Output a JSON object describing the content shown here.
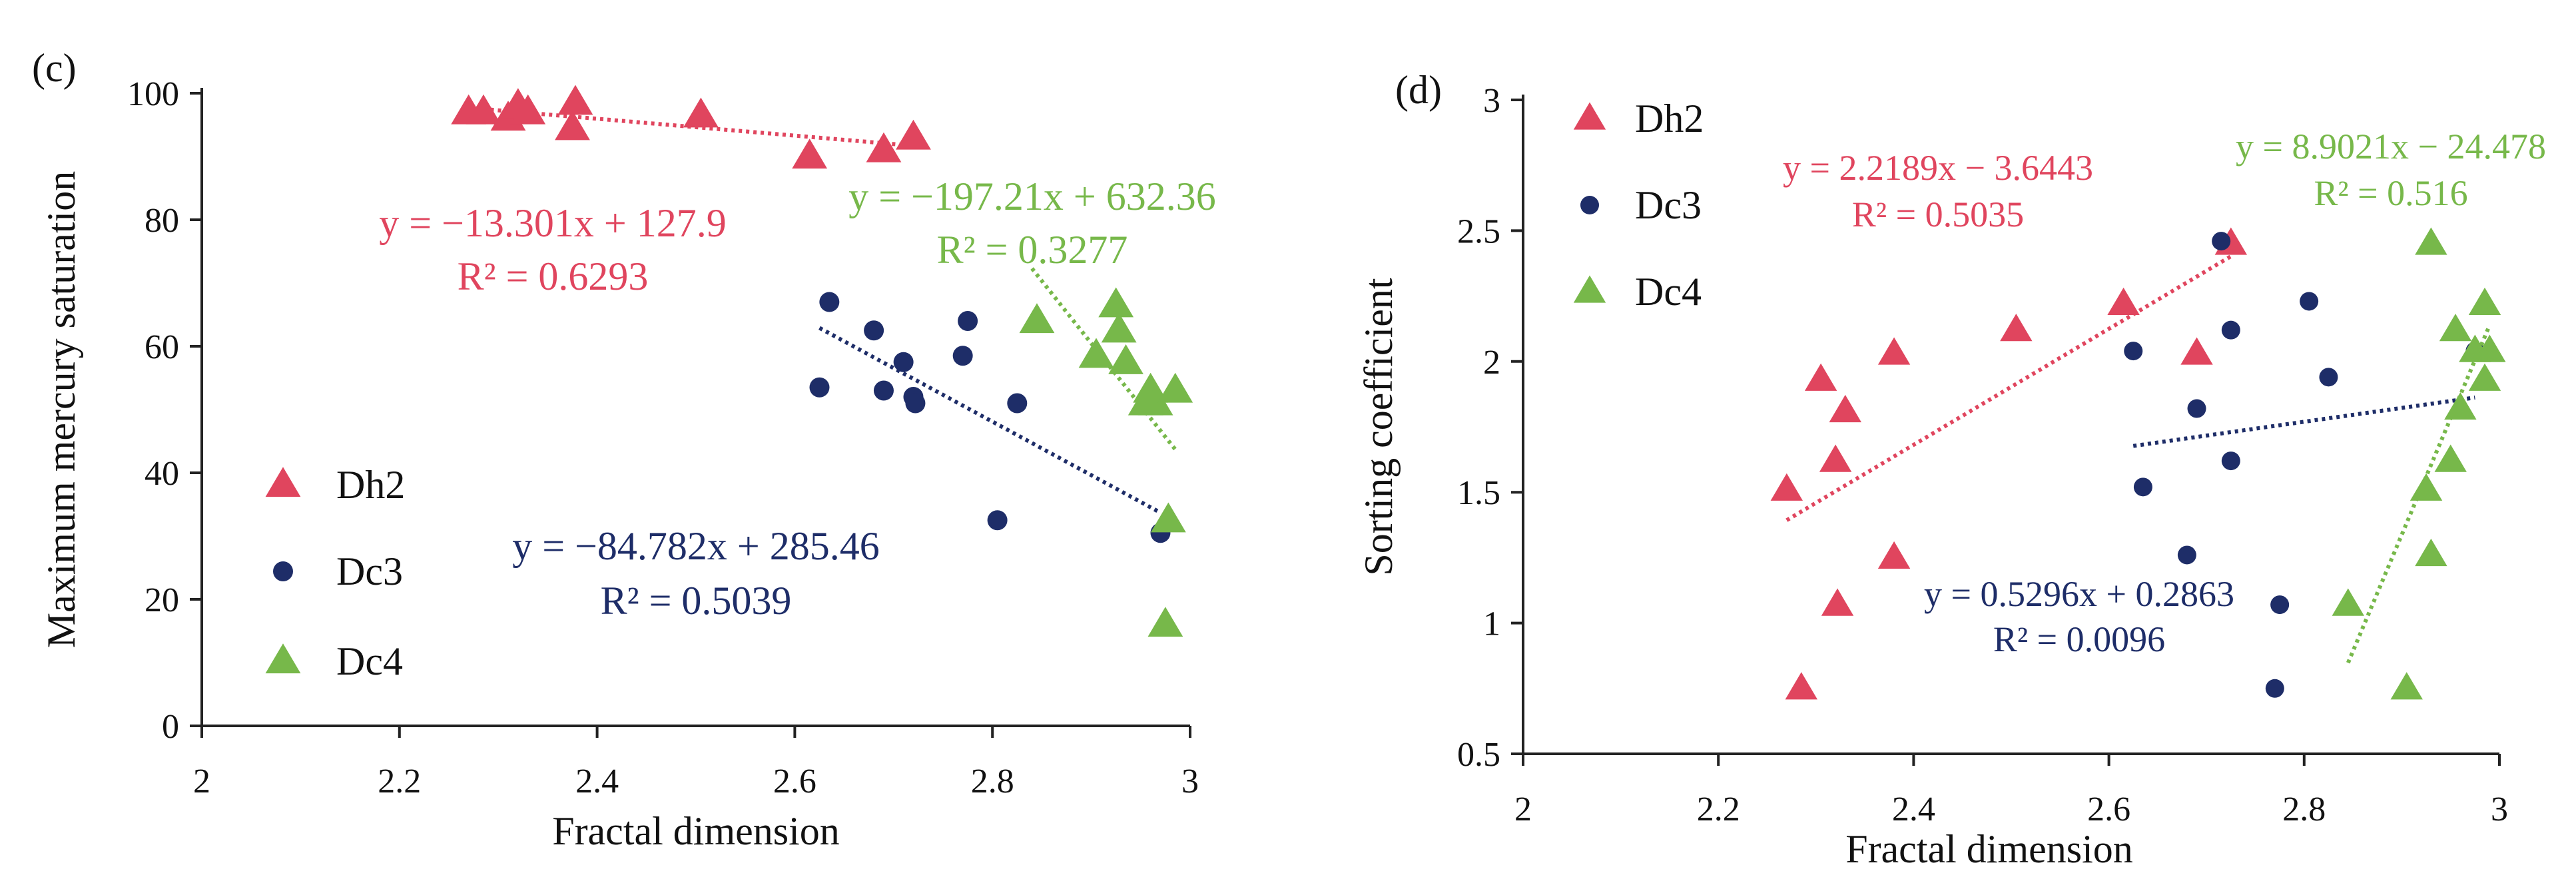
{
  "colors": {
    "dh2": "#E0455E",
    "dc3": "#1E2D68",
    "dc4": "#77B84A",
    "axis": "#222222"
  },
  "chart_data": [
    {
      "type": "scatter",
      "panel_label": "(c)",
      "xlabel": "Fractal dimension",
      "ylabel": "Maximum mercury saturation",
      "xlim": [
        2,
        3
      ],
      "ylim": [
        0,
        100
      ],
      "xticks": [
        "2",
        "2.2",
        "2.4",
        "2.6",
        "2.8",
        "3"
      ],
      "yticks": [
        "0",
        "20",
        "40",
        "60",
        "80",
        "100"
      ],
      "legend": [
        "Dh2",
        "Dc3",
        "Dc4"
      ],
      "legend_position": "bottom-left",
      "series": [
        {
          "name": "Dh2",
          "marker": "triangle",
          "color": "#E0455E",
          "x": [
            2.27,
            2.285,
            2.31,
            2.32,
            2.33,
            2.375,
            2.378,
            2.505,
            2.615,
            2.69,
            2.72
          ],
          "y": [
            97,
            97,
            96,
            98,
            97,
            94.5,
            98.5,
            96.5,
            90,
            91,
            93
          ],
          "equation": "y = −13.301x + 127.9",
          "r2": "R² = 0.6293",
          "trend": [
            [
              2.27,
              97.7
            ],
            [
              2.72,
              91.7
            ]
          ]
        },
        {
          "name": "Dc3",
          "marker": "circle",
          "color": "#1E2D68",
          "x": [
            2.625,
            2.635,
            2.68,
            2.69,
            2.71,
            2.72,
            2.722,
            2.77,
            2.775,
            2.805,
            2.825,
            2.97
          ],
          "y": [
            53.5,
            67,
            62.5,
            53,
            57.5,
            52,
            51,
            58.5,
            64,
            32.5,
            51,
            30.5
          ],
          "equation": "y = −84.782x + 285.46",
          "r2": "R² = 0.5039",
          "trend": [
            [
              2.625,
              62.9
            ],
            [
              2.97,
              33.7
            ]
          ]
        },
        {
          "name": "Dc4",
          "marker": "triangle",
          "color": "#77B84A",
          "x": [
            2.845,
            2.905,
            2.925,
            2.928,
            2.935,
            2.955,
            2.96,
            2.965,
            2.975,
            2.978,
            2.985
          ],
          "y": [
            64,
            58.5,
            66.5,
            62.5,
            57.5,
            51,
            53,
            51,
            16,
            32.5,
            53
          ],
          "equation": "y = −197.21x + 632.36",
          "r2": "R² = 0.3277",
          "trend": [
            [
              2.84,
              72.3
            ],
            [
              2.985,
              43.7
            ]
          ]
        }
      ]
    },
    {
      "type": "scatter",
      "panel_label": "(d)",
      "xlabel": "Fractal dimension",
      "ylabel": "Sorting coefficient",
      "xlim": [
        2,
        3
      ],
      "ylim": [
        0.5,
        3
      ],
      "xticks": [
        "2",
        "2.2",
        "2.4",
        "2.6",
        "2.8",
        "3"
      ],
      "yticks": [
        "0.5",
        "1",
        "1.5",
        "2",
        "2.5",
        "3"
      ],
      "legend": [
        "Dh2",
        "Dc3",
        "Dc4"
      ],
      "legend_position": "top-left",
      "series": [
        {
          "name": "Dh2",
          "marker": "triangle",
          "color": "#E0455E",
          "x": [
            2.27,
            2.285,
            2.305,
            2.32,
            2.322,
            2.33,
            2.38,
            2.38,
            2.505,
            2.615,
            2.69,
            2.725
          ],
          "y": [
            1.51,
            0.75,
            1.93,
            1.62,
            1.07,
            1.81,
            1.25,
            2.03,
            2.12,
            2.22,
            2.03,
            2.45
          ],
          "equation": "y = 2.2189x − 3.6443",
          "r2": "R² = 0.5035",
          "trend": [
            [
              2.27,
              1.393
            ],
            [
              2.725,
              2.402
            ]
          ]
        },
        {
          "name": "Dc3",
          "marker": "circle",
          "color": "#1E2D68",
          "x": [
            2.625,
            2.635,
            2.68,
            2.69,
            2.715,
            2.725,
            2.725,
            2.77,
            2.775,
            2.805,
            2.825,
            2.975
          ],
          "y": [
            2.04,
            1.52,
            1.26,
            1.82,
            2.46,
            2.12,
            1.62,
            0.75,
            1.07,
            2.23,
            1.94,
            2.04
          ],
          "equation": "y = 0.5296x + 0.2863",
          "r2": "R² = 0.0096",
          "trend": [
            [
              2.625,
              1.677
            ],
            [
              2.975,
              1.862
            ]
          ]
        },
        {
          "name": "Dc4",
          "marker": "triangle",
          "color": "#77B84A",
          "x": [
            2.845,
            2.905,
            2.925,
            2.93,
            2.93,
            2.95,
            2.955,
            2.96,
            2.975,
            2.985,
            2.985,
            2.99
          ],
          "y": [
            1.07,
            0.75,
            1.51,
            2.45,
            1.26,
            1.62,
            2.12,
            1.82,
            2.04,
            2.22,
            1.93,
            2.04
          ],
          "equation": "y = 8.9021x − 24.478",
          "r2": "R² = 0.516",
          "trend": [
            [
              2.845,
              0.848
            ],
            [
              2.99,
              2.139
            ]
          ]
        }
      ]
    }
  ]
}
